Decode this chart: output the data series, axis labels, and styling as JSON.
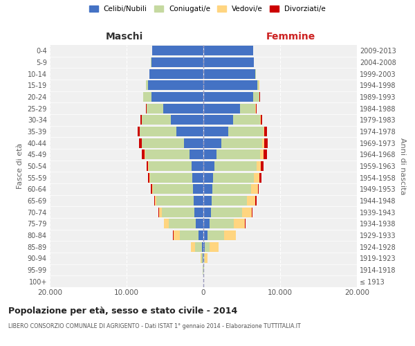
{
  "age_groups": [
    "100+",
    "95-99",
    "90-94",
    "85-89",
    "80-84",
    "75-79",
    "70-74",
    "65-69",
    "60-64",
    "55-59",
    "50-54",
    "45-49",
    "40-44",
    "35-39",
    "30-34",
    "25-29",
    "20-24",
    "15-19",
    "10-14",
    "5-9",
    "0-4"
  ],
  "birth_years": [
    "≤ 1913",
    "1914-1918",
    "1919-1923",
    "1924-1928",
    "1929-1933",
    "1934-1938",
    "1939-1943",
    "1944-1948",
    "1949-1953",
    "1954-1958",
    "1959-1963",
    "1964-1968",
    "1969-1973",
    "1974-1978",
    "1979-1983",
    "1984-1988",
    "1989-1993",
    "1994-1998",
    "1999-2003",
    "2004-2008",
    "2009-2013"
  ],
  "male_celibe": [
    20,
    30,
    80,
    200,
    600,
    1000,
    1200,
    1300,
    1350,
    1400,
    1500,
    1800,
    2500,
    3500,
    4200,
    5200,
    6800,
    7200,
    7000,
    6800,
    6700
  ],
  "male_coniugato": [
    10,
    30,
    150,
    900,
    2500,
    3500,
    4200,
    4800,
    5200,
    5500,
    5600,
    5800,
    5500,
    4800,
    3800,
    2200,
    1000,
    300,
    10,
    5,
    5
  ],
  "male_vedovo": [
    5,
    20,
    100,
    500,
    800,
    600,
    400,
    200,
    150,
    100,
    80,
    60,
    50,
    30,
    20,
    10,
    5,
    2,
    2,
    2,
    2
  ],
  "male_divorziato": [
    2,
    2,
    5,
    10,
    20,
    80,
    100,
    120,
    150,
    200,
    250,
    350,
    300,
    250,
    150,
    80,
    30,
    10,
    5,
    2,
    2
  ],
  "female_celibe": [
    20,
    30,
    80,
    200,
    500,
    800,
    1000,
    1100,
    1200,
    1300,
    1400,
    1700,
    2300,
    3200,
    3900,
    4800,
    6500,
    7000,
    6800,
    6600,
    6500
  ],
  "female_coniugato": [
    8,
    20,
    100,
    600,
    2200,
    3200,
    4000,
    4600,
    5000,
    5300,
    5500,
    5700,
    5400,
    4600,
    3500,
    2000,
    800,
    250,
    8,
    4,
    4
  ],
  "female_vedova": [
    10,
    60,
    350,
    1200,
    1500,
    1400,
    1300,
    1100,
    900,
    700,
    550,
    400,
    250,
    150,
    80,
    30,
    15,
    5,
    3,
    2,
    2
  ],
  "female_divorziata": [
    2,
    2,
    5,
    10,
    20,
    60,
    80,
    100,
    150,
    250,
    350,
    500,
    400,
    300,
    180,
    100,
    40,
    15,
    5,
    2,
    2
  ],
  "colors": {
    "celibe": "#4472C4",
    "coniugato": "#C5D9A0",
    "vedovo": "#FFD580",
    "divorziato": "#CC0000"
  },
  "xlim": 20000,
  "title": "Popolazione per età, sesso e stato civile - 2014",
  "subtitle": "LIBERO CONSORZIO COMUNALE DI AGRIGENTO - Dati ISTAT 1° gennaio 2014 - Elaborazione TUTTITALIA.IT",
  "xlabel_left": "Maschi",
  "xlabel_right": "Femmine",
  "ylabel_left": "Fasce di età",
  "ylabel_right": "Anni di nascita",
  "legend_labels": [
    "Celibi/Nubili",
    "Coniugati/e",
    "Vedovi/e",
    "Divorziati/e"
  ],
  "bg_color": "#ffffff",
  "plot_bg_color": "#f0f0f0",
  "grid_color": "#cccccc"
}
